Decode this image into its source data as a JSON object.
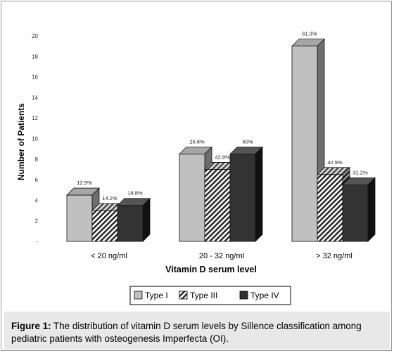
{
  "chart_data": {
    "type": "bar",
    "categories": [
      "< 20 ng/ml",
      "20 - 32 ng/ml",
      "> 32 ng/ml"
    ],
    "series": [
      {
        "name": "Type I",
        "values": [
          4.5,
          8.5,
          19
        ],
        "labels": [
          "12.9%",
          "25.8%",
          "61.3%"
        ],
        "fill": "#c0c0c0"
      },
      {
        "name": "Type III",
        "values": [
          3,
          7,
          6.5
        ],
        "labels": [
          "14.2%",
          "42.9%",
          "42.9%"
        ],
        "fill": "hatch"
      },
      {
        "name": "Type IV",
        "values": [
          3.5,
          8.5,
          5.5
        ],
        "labels": [
          "18.8%",
          "50%",
          "31.2%"
        ],
        "fill": "#333333"
      }
    ],
    "ylim": [
      0,
      20
    ],
    "yticks": [
      "-",
      "2",
      "4",
      "6",
      "8",
      "10",
      "12",
      "14",
      "16",
      "18",
      "20"
    ],
    "ylabel": "Number of Patients",
    "xlabel": "Vitamin D serum level",
    "legend_position": "bottom"
  },
  "caption": {
    "label": "Figure 1:",
    "text": " The distribution of vitamin D serum levels by Sillence classification among pediatric patients with osteogenesis Imperfecta (OI)."
  }
}
